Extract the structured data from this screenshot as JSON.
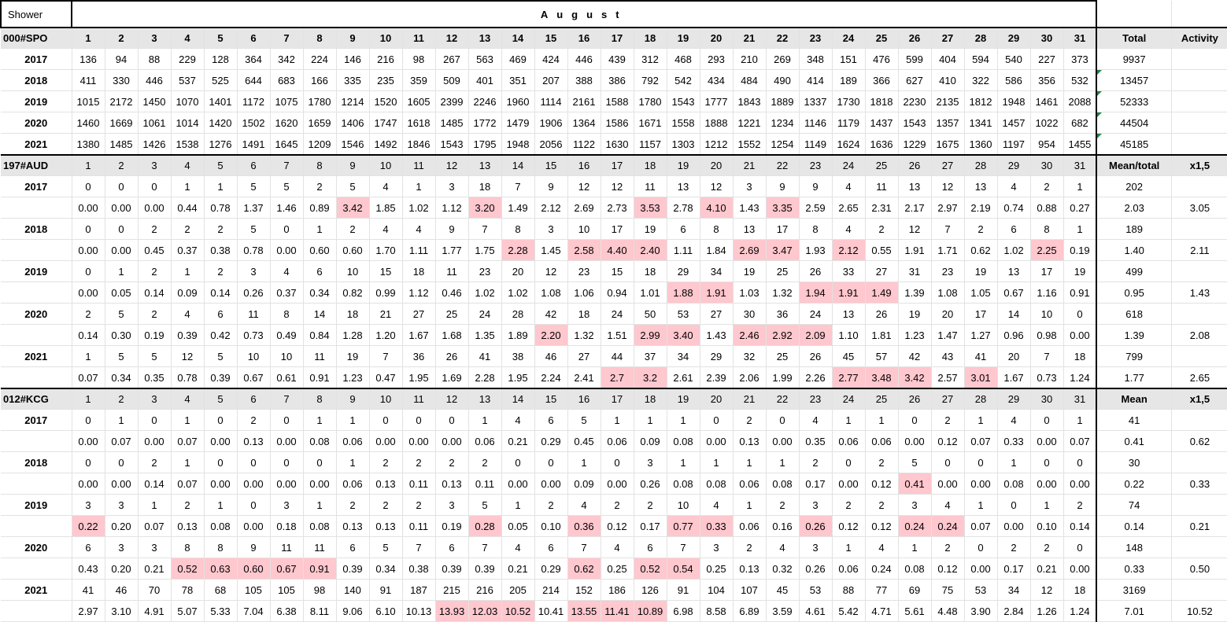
{
  "shower_label": "Shower",
  "month": "August",
  "days": [
    "1",
    "2",
    "3",
    "4",
    "5",
    "6",
    "7",
    "8",
    "9",
    "10",
    "11",
    "12",
    "13",
    "14",
    "15",
    "16",
    "17",
    "18",
    "19",
    "20",
    "21",
    "22",
    "23",
    "24",
    "25",
    "26",
    "27",
    "28",
    "29",
    "30",
    "31"
  ],
  "sections": [
    {
      "code": "000#SPO",
      "total_header": "Total",
      "activity_header": "Activity",
      "header_style": "bold",
      "rows": [
        {
          "year": "2017",
          "counts": [
            "136",
            "94",
            "88",
            "229",
            "128",
            "364",
            "342",
            "224",
            "146",
            "216",
            "98",
            "267",
            "563",
            "469",
            "424",
            "446",
            "439",
            "312",
            "468",
            "293",
            "210",
            "269",
            "348",
            "151",
            "476",
            "599",
            "404",
            "594",
            "540",
            "227",
            "373"
          ],
          "total": "9937"
        },
        {
          "year": "2018",
          "counts": [
            "411",
            "330",
            "446",
            "537",
            "525",
            "644",
            "683",
            "166",
            "335",
            "235",
            "359",
            "509",
            "401",
            "351",
            "207",
            "388",
            "386",
            "792",
            "542",
            "434",
            "484",
            "490",
            "414",
            "189",
            "366",
            "627",
            "410",
            "322",
            "586",
            "356",
            "532"
          ],
          "total": "13457"
        },
        {
          "year": "2019",
          "counts": [
            "1015",
            "2172",
            "1450",
            "1070",
            "1401",
            "1172",
            "1075",
            "1780",
            "1214",
            "1520",
            "1605",
            "2399",
            "2246",
            "1960",
            "1114",
            "2161",
            "1588",
            "1780",
            "1543",
            "1777",
            "1843",
            "1889",
            "1337",
            "1730",
            "1818",
            "2230",
            "2135",
            "1812",
            "1948",
            "1461",
            "2088"
          ],
          "total": "52333"
        },
        {
          "year": "2020",
          "counts": [
            "1460",
            "1669",
            "1061",
            "1014",
            "1420",
            "1502",
            "1620",
            "1659",
            "1406",
            "1747",
            "1618",
            "1485",
            "1772",
            "1479",
            "1906",
            "1364",
            "1586",
            "1671",
            "1558",
            "1888",
            "1221",
            "1234",
            "1146",
            "1179",
            "1437",
            "1543",
            "1357",
            "1341",
            "1457",
            "1022",
            "682"
          ],
          "total": "44504"
        },
        {
          "year": "2021",
          "counts": [
            "1380",
            "1485",
            "1426",
            "1538",
            "1276",
            "1491",
            "1645",
            "1209",
            "1546",
            "1492",
            "1846",
            "1543",
            "1795",
            "1948",
            "2056",
            "1122",
            "1630",
            "1157",
            "1303",
            "1212",
            "1552",
            "1254",
            "1149",
            "1624",
            "1636",
            "1229",
            "1675",
            "1360",
            "1197",
            "954",
            "1455"
          ],
          "total": "45185"
        }
      ]
    },
    {
      "code": "197#AUD",
      "total_header": "Mean/total",
      "activity_header": "x1,5",
      "header_style": "light",
      "rows": [
        {
          "year": "2017",
          "counts": [
            "0",
            "0",
            "0",
            "1",
            "1",
            "5",
            "5",
            "2",
            "5",
            "4",
            "1",
            "3",
            "18",
            "7",
            "9",
            "12",
            "12",
            "11",
            "13",
            "12",
            "3",
            "9",
            "9",
            "4",
            "11",
            "13",
            "12",
            "13",
            "4",
            "2",
            "1"
          ],
          "total": "202",
          "rates": [
            "0.00",
            "0.00",
            "0.00",
            "0.44",
            "0.78",
            "1.37",
            "1.46",
            "0.89",
            "3.42",
            "1.85",
            "1.02",
            "1.12",
            "3.20",
            "1.49",
            "2.12",
            "2.69",
            "2.73",
            "3.53",
            "2.78",
            "4.10",
            "1.43",
            "3.35",
            "2.59",
            "2.65",
            "2.31",
            "2.17",
            "2.97",
            "2.19",
            "0.74",
            "0.88",
            "0.27"
          ],
          "mean": "2.03",
          "activity": "3.05",
          "highlight": [
            9,
            13,
            18,
            20,
            22
          ]
        },
        {
          "year": "2018",
          "counts": [
            "0",
            "0",
            "2",
            "2",
            "2",
            "5",
            "0",
            "1",
            "2",
            "4",
            "4",
            "9",
            "7",
            "8",
            "3",
            "10",
            "17",
            "19",
            "6",
            "8",
            "13",
            "17",
            "8",
            "4",
            "2",
            "12",
            "7",
            "2",
            "6",
            "8",
            "1"
          ],
          "total": "189",
          "rates": [
            "0.00",
            "0.00",
            "0.45",
            "0.37",
            "0.38",
            "0.78",
            "0.00",
            "0.60",
            "0.60",
            "1.70",
            "1.11",
            "1.77",
            "1.75",
            "2.28",
            "1.45",
            "2.58",
            "4.40",
            "2.40",
            "1.11",
            "1.84",
            "2.69",
            "3.47",
            "1.93",
            "2.12",
            "0.55",
            "1.91",
            "1.71",
            "0.62",
            "1.02",
            "2.25",
            "0.19"
          ],
          "mean": "1.40",
          "activity": "2.11",
          "highlight": [
            14,
            16,
            17,
            18,
            21,
            22,
            24,
            30
          ]
        },
        {
          "year": "2019",
          "counts": [
            "0",
            "1",
            "2",
            "1",
            "2",
            "3",
            "4",
            "6",
            "10",
            "15",
            "18",
            "11",
            "23",
            "20",
            "12",
            "23",
            "15",
            "18",
            "29",
            "34",
            "19",
            "25",
            "26",
            "33",
            "27",
            "31",
            "23",
            "19",
            "13",
            "17",
            "19"
          ],
          "total": "499",
          "rates": [
            "0.00",
            "0.05",
            "0.14",
            "0.09",
            "0.14",
            "0.26",
            "0.37",
            "0.34",
            "0.82",
            "0.99",
            "1.12",
            "0.46",
            "1.02",
            "1.02",
            "1.08",
            "1.06",
            "0.94",
            "1.01",
            "1.88",
            "1.91",
            "1.03",
            "1.32",
            "1.94",
            "1.91",
            "1.49",
            "1.39",
            "1.08",
            "1.05",
            "0.67",
            "1.16",
            "0.91"
          ],
          "mean": "0.95",
          "activity": "1.43",
          "highlight": [
            19,
            20,
            23,
            24,
            25
          ]
        },
        {
          "year": "2020",
          "counts": [
            "2",
            "5",
            "2",
            "4",
            "6",
            "11",
            "8",
            "14",
            "18",
            "21",
            "27",
            "25",
            "24",
            "28",
            "42",
            "18",
            "24",
            "50",
            "53",
            "27",
            "30",
            "36",
            "24",
            "13",
            "26",
            "19",
            "20",
            "17",
            "14",
            "10",
            "0"
          ],
          "total": "618",
          "rates": [
            "0.14",
            "0.30",
            "0.19",
            "0.39",
            "0.42",
            "0.73",
            "0.49",
            "0.84",
            "1.28",
            "1.20",
            "1.67",
            "1.68",
            "1.35",
            "1.89",
            "2.20",
            "1.32",
            "1.51",
            "2.99",
            "3.40",
            "1.43",
            "2.46",
            "2.92",
            "2.09",
            "1.10",
            "1.81",
            "1.23",
            "1.47",
            "1.27",
            "0.96",
            "0.98",
            "0.00"
          ],
          "mean": "1.39",
          "activity": "2.08",
          "highlight": [
            15,
            18,
            19,
            21,
            22,
            23
          ]
        },
        {
          "year": "2021",
          "counts": [
            "1",
            "5",
            "5",
            "12",
            "5",
            "10",
            "10",
            "11",
            "19",
            "7",
            "36",
            "26",
            "41",
            "38",
            "46",
            "27",
            "44",
            "37",
            "34",
            "29",
            "32",
            "25",
            "26",
            "45",
            "57",
            "42",
            "43",
            "41",
            "20",
            "7",
            "18"
          ],
          "total": "799",
          "rates": [
            "0.07",
            "0.34",
            "0.35",
            "0.78",
            "0.39",
            "0.67",
            "0.61",
            "0.91",
            "1.23",
            "0.47",
            "1.95",
            "1.69",
            "2.28",
            "1.95",
            "2.24",
            "2.41",
            "2.7",
            "3.2",
            "2.61",
            "2.39",
            "2.06",
            "1.99",
            "2.26",
            "2.77",
            "3.48",
            "3.42",
            "2.57",
            "3.01",
            "1.67",
            "0.73",
            "1.24"
          ],
          "mean": "1.77",
          "activity": "2.65",
          "highlight": [
            17,
            18,
            24,
            25,
            26,
            28
          ]
        }
      ]
    },
    {
      "code": "012#KCG",
      "total_header": "Mean",
      "activity_header": "x1,5",
      "header_style": "light",
      "rows": [
        {
          "year": "2017",
          "counts": [
            "0",
            "1",
            "0",
            "1",
            "0",
            "2",
            "0",
            "1",
            "1",
            "0",
            "0",
            "0",
            "1",
            "4",
            "6",
            "5",
            "1",
            "1",
            "1",
            "0",
            "2",
            "0",
            "4",
            "1",
            "1",
            "0",
            "2",
            "1",
            "4",
            "0",
            "1"
          ],
          "total": "41",
          "rates": [
            "0.00",
            "0.07",
            "0.00",
            "0.07",
            "0.00",
            "0.13",
            "0.00",
            "0.08",
            "0.06",
            "0.00",
            "0.00",
            "0.00",
            "0.06",
            "0.21",
            "0.29",
            "0.45",
            "0.06",
            "0.09",
            "0.08",
            "0.00",
            "0.13",
            "0.00",
            "0.35",
            "0.06",
            "0.06",
            "0.00",
            "0.12",
            "0.07",
            "0.33",
            "0.00",
            "0.07"
          ],
          "mean": "0.41",
          "activity": "0.62",
          "highlight": []
        },
        {
          "year": "2018",
          "counts": [
            "0",
            "0",
            "2",
            "1",
            "0",
            "0",
            "0",
            "0",
            "1",
            "2",
            "2",
            "2",
            "2",
            "0",
            "0",
            "1",
            "0",
            "3",
            "1",
            "1",
            "1",
            "1",
            "2",
            "0",
            "2",
            "5",
            "0",
            "0",
            "1",
            "0",
            "0"
          ],
          "total": "30",
          "rates": [
            "0.00",
            "0.00",
            "0.14",
            "0.07",
            "0.00",
            "0.00",
            "0.00",
            "0.00",
            "0.06",
            "0.13",
            "0.11",
            "0.13",
            "0.11",
            "0.00",
            "0.00",
            "0.09",
            "0.00",
            "0.26",
            "0.08",
            "0.08",
            "0.06",
            "0.08",
            "0.17",
            "0.00",
            "0.12",
            "0.41",
            "0.00",
            "0.00",
            "0.08",
            "0.00",
            "0.00"
          ],
          "mean": "0.22",
          "activity": "0.33",
          "highlight": [
            26
          ]
        },
        {
          "year": "2019",
          "counts": [
            "3",
            "3",
            "1",
            "2",
            "1",
            "0",
            "3",
            "1",
            "2",
            "2",
            "2",
            "3",
            "5",
            "1",
            "2",
            "4",
            "2",
            "2",
            "10",
            "4",
            "1",
            "2",
            "3",
            "2",
            "2",
            "3",
            "4",
            "1",
            "0",
            "1",
            "2"
          ],
          "total": "74",
          "rates": [
            "0.22",
            "0.20",
            "0.07",
            "0.13",
            "0.08",
            "0.00",
            "0.18",
            "0.08",
            "0.13",
            "0.13",
            "0.11",
            "0.19",
            "0.28",
            "0.05",
            "0.10",
            "0.36",
            "0.12",
            "0.17",
            "0.77",
            "0.33",
            "0.06",
            "0.16",
            "0.26",
            "0.12",
            "0.12",
            "0.24",
            "0.24",
            "0.07",
            "0.00",
            "0.10",
            "0.14"
          ],
          "mean": "0.14",
          "activity": "0.21",
          "highlight": [
            1,
            13,
            16,
            19,
            20,
            23,
            26,
            27
          ]
        },
        {
          "year": "2020",
          "counts": [
            "6",
            "3",
            "3",
            "8",
            "8",
            "9",
            "11",
            "11",
            "6",
            "5",
            "7",
            "6",
            "7",
            "4",
            "6",
            "7",
            "4",
            "6",
            "7",
            "3",
            "2",
            "4",
            "3",
            "1",
            "4",
            "1",
            "2",
            "0",
            "2",
            "2",
            "0"
          ],
          "total": "148",
          "rates": [
            "0.43",
            "0.20",
            "0.21",
            "0.52",
            "0.63",
            "0.60",
            "0.67",
            "0.91",
            "0.39",
            "0.34",
            "0.38",
            "0.39",
            "0.39",
            "0.21",
            "0.29",
            "0.62",
            "0.25",
            "0.52",
            "0.54",
            "0.25",
            "0.13",
            "0.32",
            "0.26",
            "0.06",
            "0.24",
            "0.08",
            "0.12",
            "0.00",
            "0.17",
            "0.21",
            "0.00"
          ],
          "mean": "0.33",
          "activity": "0.50",
          "highlight": [
            4,
            5,
            6,
            7,
            8,
            16,
            18,
            19
          ]
        },
        {
          "year": "2021",
          "counts": [
            "41",
            "46",
            "70",
            "78",
            "68",
            "105",
            "105",
            "98",
            "140",
            "91",
            "187",
            "215",
            "216",
            "205",
            "214",
            "152",
            "186",
            "126",
            "91",
            "104",
            "107",
            "45",
            "53",
            "88",
            "77",
            "69",
            "75",
            "53",
            "34",
            "12",
            "18"
          ],
          "total": "3169",
          "rates": [
            "2.97",
            "3.10",
            "4.91",
            "5.07",
            "5.33",
            "7.04",
            "6.38",
            "8.11",
            "9.06",
            "6.10",
            "10.13",
            "13.93",
            "12.03",
            "10.52",
            "10.41",
            "13.55",
            "11.41",
            "10.89",
            "6.98",
            "8.58",
            "6.89",
            "3.59",
            "4.61",
            "5.42",
            "4.71",
            "5.61",
            "4.48",
            "3.90",
            "2.84",
            "1.26",
            "1.24"
          ],
          "mean": "7.01",
          "activity": "10.52",
          "highlight": [
            12,
            13,
            14,
            16,
            17,
            18
          ]
        }
      ]
    }
  ]
}
